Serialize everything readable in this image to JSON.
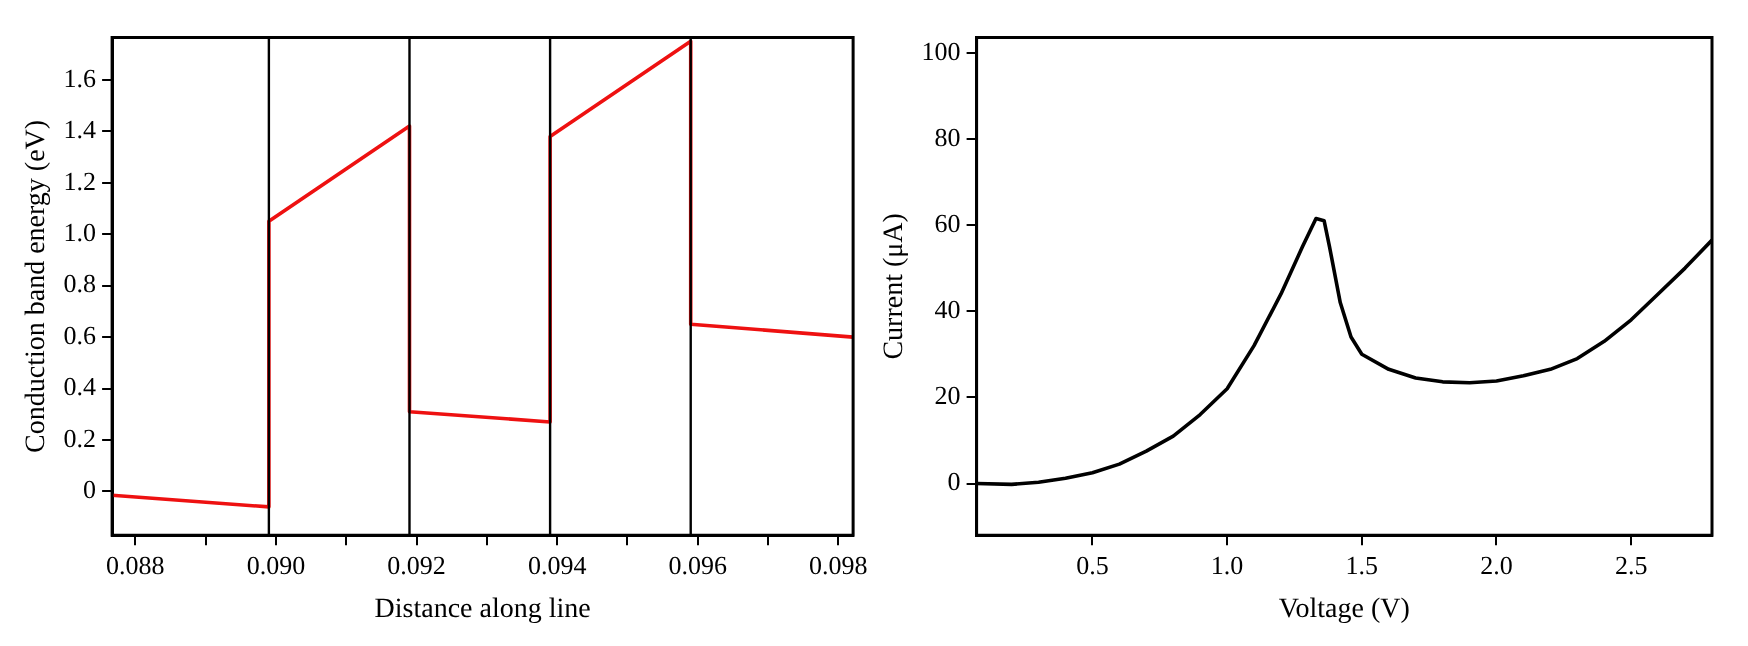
{
  "chart_data": [
    {
      "type": "line",
      "xlabel": "Distance along line",
      "ylabel": "Conduction band energy (eV)",
      "xlim": [
        0.08767,
        0.09821
      ],
      "ylim": [
        -0.17,
        1.764
      ],
      "xticks": [
        0.088,
        {
          "value": 0.089,
          "label": null
        },
        {
          "value": 0.09,
          "label": "0.090"
        },
        {
          "value": 0.091,
          "label": null
        },
        0.092,
        {
          "value": 0.093,
          "label": null
        },
        0.094,
        {
          "value": 0.095,
          "label": null
        },
        0.096,
        {
          "value": 0.097,
          "label": null
        },
        0.098
      ],
      "yticks": [
        0,
        0.2,
        0.4,
        0.6,
        0.8,
        {
          "value": 1,
          "label": "1.0"
        },
        1.2,
        1.4,
        1.6
      ],
      "series": [
        {
          "color": "#ee1111",
          "x": [
            0.08767,
            0.0899,
            0.0899,
            0.0919,
            0.0919,
            0.0939,
            0.0939,
            0.0959,
            0.0959,
            0.09821
          ],
          "values": [
            -0.015,
            -0.06,
            1.05,
            1.42,
            0.31,
            0.27,
            1.38,
            1.75,
            0.65,
            0.6
          ]
        }
      ],
      "ref_lines": [
        {
          "axis": "x",
          "value": 0.0899,
          "color": "#000000"
        },
        {
          "axis": "x",
          "value": 0.0919,
          "color": "#000000"
        },
        {
          "axis": "x",
          "value": 0.0939,
          "color": "#000000"
        },
        {
          "axis": "x",
          "value": 0.0959,
          "color": "#000000"
        }
      ],
      "grid": false,
      "legend": false,
      "marker": "none",
      "line_style": "solid"
    },
    {
      "type": "line",
      "xlabel": "Voltage (V)",
      "ylabel": "Current (μA)",
      "xlim": [
        0.07,
        2.8
      ],
      "ylim": [
        -12,
        103.5
      ],
      "xticks": [
        0.5,
        {
          "value": 1,
          "label": "1.0"
        },
        1.5,
        {
          "value": 2,
          "label": "2.0"
        },
        2.5
      ],
      "yticks": [
        0,
        20,
        40,
        60,
        80,
        100
      ],
      "series": [
        {
          "color": "#000000",
          "x": [
            0.07,
            0.2,
            0.3,
            0.4,
            0.5,
            0.6,
            0.7,
            0.8,
            0.9,
            1.0,
            1.1,
            1.2,
            1.28,
            1.33,
            1.36,
            1.38,
            1.42,
            1.46,
            1.5,
            1.6,
            1.7,
            1.8,
            1.9,
            2.0,
            2.1,
            2.2,
            2.3,
            2.4,
            2.5,
            2.6,
            2.7,
            2.8
          ],
          "values": [
            0,
            -0.2,
            0.3,
            1.2,
            2.5,
            4.5,
            7.5,
            11,
            16,
            22,
            32,
            44,
            55,
            61.5,
            61,
            55,
            42,
            34,
            30,
            26.5,
            24.5,
            23.6,
            23.4,
            23.8,
            25,
            26.5,
            29,
            33,
            38,
            44,
            50,
            56.5
          ]
        }
      ],
      "grid": false,
      "legend": false,
      "marker": "none",
      "line_style": "solid"
    }
  ]
}
